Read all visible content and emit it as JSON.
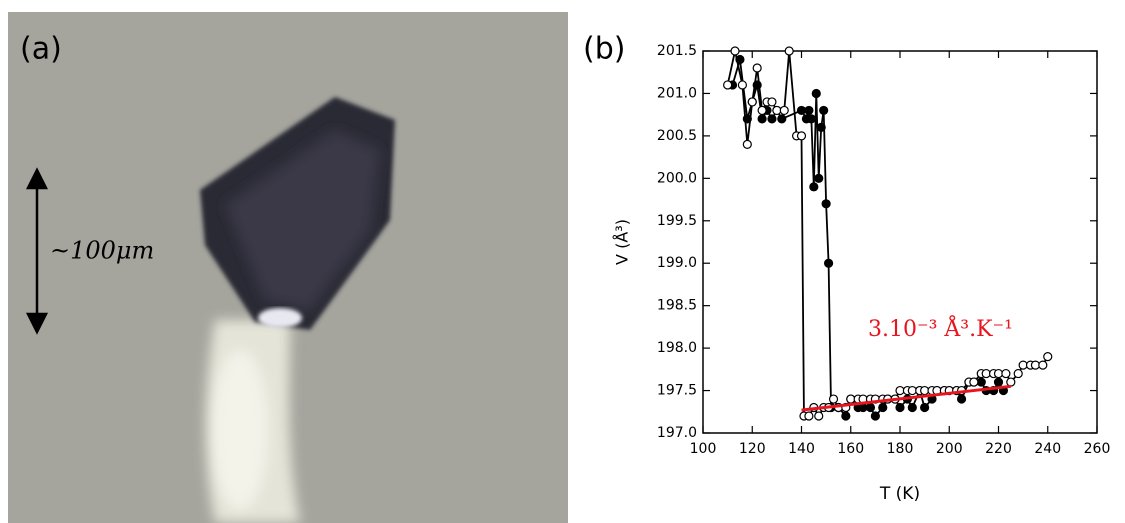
{
  "panel_a": {
    "label": "(a)",
    "scale_label": "~100μm"
  },
  "chart_data": {
    "type": "line",
    "label": "(b)",
    "xlabel": "T (K)",
    "ylabel": "V (Å³)",
    "annotation": "3.10⁻³ Å³.K⁻¹",
    "annotation_color": "#e8141e",
    "xlim": [
      100,
      260
    ],
    "xticks": [
      100,
      120,
      140,
      160,
      180,
      200,
      220,
      240,
      260
    ],
    "ylim": [
      197,
      201.5
    ],
    "yticks": [
      {
        "value": 197,
        "label": "197.0"
      },
      {
        "value": 197.5,
        "label": "197.5"
      },
      {
        "value": 198,
        "label": "198.0"
      },
      {
        "value": 198.5,
        "label": "198.5"
      },
      {
        "value": 199,
        "label": "199.0"
      },
      {
        "value": 199.5,
        "label": "199.5"
      },
      {
        "value": 200,
        "label": "200.0"
      },
      {
        "value": 200.5,
        "label": "200.5"
      },
      {
        "value": 201,
        "label": "201.0"
      },
      {
        "value": 201.5,
        "label": "201.5"
      }
    ],
    "series": [
      {
        "color": "#000000",
        "markers": true,
        "marker_fill": "#000000",
        "x": [
          112,
          115,
          118,
          120,
          122,
          124,
          126,
          128,
          130,
          132,
          140,
          142,
          143,
          144,
          145,
          146,
          147,
          148,
          149,
          150,
          151,
          152,
          155,
          158,
          160,
          163,
          165,
          168,
          170,
          173,
          175,
          178,
          180,
          183,
          185,
          188,
          190,
          193,
          195,
          198,
          200,
          203,
          205,
          208,
          210,
          213,
          215,
          218,
          220,
          222
        ],
        "values": [
          201.1,
          201.4,
          200.7,
          200.9,
          201.1,
          200.7,
          200.8,
          200.7,
          200.8,
          200.7,
          200.8,
          200.7,
          200.8,
          200.7,
          199.9,
          201.0,
          200.0,
          200.6,
          200.8,
          199.7,
          199.0,
          197.3,
          197.3,
          197.2,
          197.4,
          197.3,
          197.3,
          197.3,
          197.2,
          197.3,
          197.4,
          197.4,
          197.3,
          197.4,
          197.3,
          197.5,
          197.3,
          197.4,
          197.5,
          197.5,
          197.5,
          197.5,
          197.4,
          197.6,
          197.6,
          197.6,
          197.5,
          197.5,
          197.6,
          197.5
        ]
      },
      {
        "color": "#000000",
        "markers": true,
        "marker_fill": "#ffffff",
        "x": [
          110,
          113,
          116,
          118,
          120,
          122,
          124,
          126,
          128,
          130,
          133,
          135,
          138,
          140,
          141,
          143,
          145,
          147,
          149,
          151,
          153,
          155,
          158,
          160,
          163,
          165,
          168,
          170,
          173,
          175,
          178,
          180,
          183,
          185,
          188,
          190,
          193,
          195,
          198,
          200,
          203,
          205,
          208,
          210,
          213,
          215,
          218,
          220,
          223,
          225,
          228,
          230,
          233,
          235,
          238,
          240
        ],
        "values": [
          201.1,
          201.5,
          201.1,
          200.4,
          200.9,
          201.3,
          200.8,
          200.9,
          200.9,
          200.8,
          200.8,
          201.5,
          200.5,
          200.5,
          197.2,
          197.2,
          197.3,
          197.2,
          197.3,
          197.3,
          197.4,
          197.3,
          197.3,
          197.4,
          197.4,
          197.4,
          197.4,
          197.4,
          197.4,
          197.4,
          197.4,
          197.5,
          197.5,
          197.5,
          197.5,
          197.5,
          197.5,
          197.5,
          197.5,
          197.5,
          197.5,
          197.5,
          197.6,
          197.6,
          197.7,
          197.7,
          197.7,
          197.7,
          197.7,
          197.6,
          197.7,
          197.8,
          197.8,
          197.8,
          197.8,
          197.9
        ]
      },
      {
        "color": "#e8141e",
        "markers": false,
        "x": [
          140,
          225
        ],
        "values": [
          197.27,
          197.55
        ]
      }
    ]
  }
}
